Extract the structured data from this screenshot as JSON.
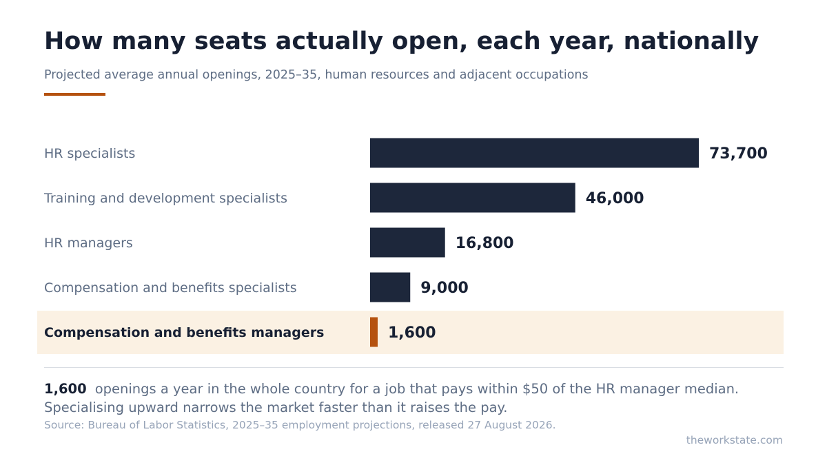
{
  "header": {
    "title": "How many seats actually open, each year, nationally",
    "subtitle": "Projected average annual openings, 2025–35, human resources and adjacent occupations"
  },
  "colors": {
    "bar": "#1d273b",
    "highlight_bar": "#b5520f",
    "highlight_background": "#fbf1e3",
    "accent_rule": "#b5520f"
  },
  "chart_data": {
    "type": "bar",
    "orientation": "horizontal",
    "categories": [
      "HR specialists",
      "Training and development specialists",
      "HR managers",
      "Compensation and benefits specialists",
      "Compensation and benefits managers"
    ],
    "values": [
      73700,
      46000,
      16800,
      9000,
      1600
    ],
    "value_labels": [
      "73,700",
      "46,000",
      "16,800",
      "9,000",
      "1,600"
    ],
    "highlighted_category": "Compensation and benefits managers",
    "xlim": [
      0,
      73700
    ],
    "grid": false,
    "legend": "none"
  },
  "footer": {
    "note_number": "1,600",
    "note_text": "openings a year in the whole country for a job that pays within $50 of the HR manager median. Specialising upward narrows the market faster than it raises the pay.",
    "source": "Source: Bureau of Labor Statistics, 2025–35 employment projections, released 27 August 2026.",
    "site": "theworkstate.com"
  }
}
